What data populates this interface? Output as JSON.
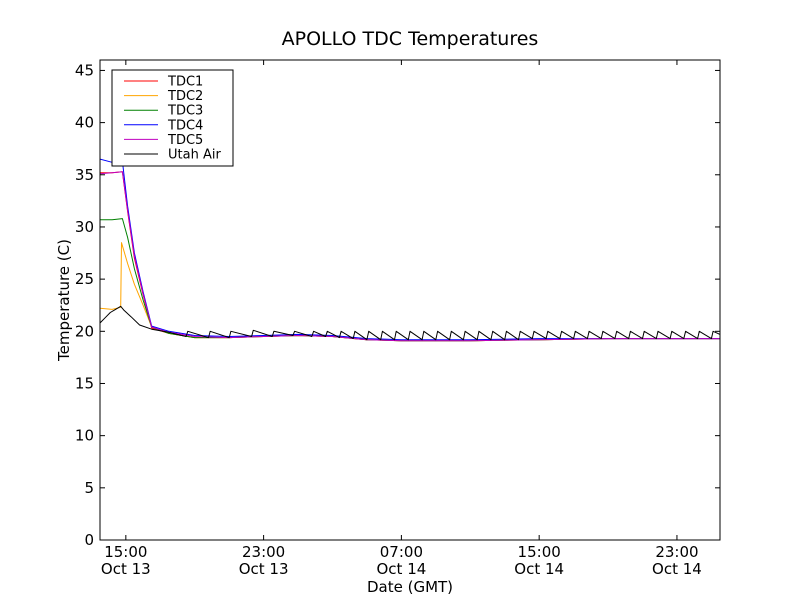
{
  "chart_data": {
    "type": "line",
    "title": "APOLLO TDC Temperatures",
    "xlabel": "Date (GMT)",
    "ylabel": "Temperature (C)",
    "xlim": [
      -1.5,
      34.5
    ],
    "ylim": [
      0,
      46
    ],
    "x_unit": "hours since 15:00 Oct 13",
    "yticks": [
      0,
      5,
      10,
      15,
      20,
      25,
      30,
      35,
      40,
      45
    ],
    "xticks": [
      {
        "x": 0,
        "line1": "15:00",
        "line2": "Oct 13"
      },
      {
        "x": 8,
        "line1": "23:00",
        "line2": "Oct 13"
      },
      {
        "x": 16,
        "line1": "07:00",
        "line2": "Oct 14"
      },
      {
        "x": 24,
        "line1": "15:00",
        "line2": "Oct 14"
      },
      {
        "x": 32,
        "line1": "23:00",
        "line2": "Oct 14"
      }
    ],
    "legend_position": "top-left",
    "series": [
      {
        "name": "TDC1",
        "color": "#ff0000",
        "x": [
          -1.5,
          -0.8,
          -0.2,
          0.1,
          0.5,
          1.0,
          1.5,
          2.5,
          4,
          6,
          8,
          10,
          12,
          14,
          16,
          18,
          20,
          24,
          28,
          32,
          34.5
        ],
        "y": [
          35.2,
          35.2,
          35.3,
          31.5,
          27.0,
          23.5,
          20.3,
          19.8,
          19.4,
          19.4,
          19.5,
          19.6,
          19.5,
          19.2,
          19.1,
          19.1,
          19.1,
          19.2,
          19.3,
          19.3,
          19.3
        ]
      },
      {
        "name": "TDC2",
        "color": "#ffa500",
        "x": [
          -1.5,
          -0.8,
          -0.3,
          -0.25,
          0.1,
          0.5,
          1.0,
          1.5,
          2.5,
          4,
          6,
          8,
          10,
          12,
          14,
          16,
          18,
          20,
          24,
          28,
          32,
          34.5
        ],
        "y": [
          22.2,
          22.1,
          22.3,
          28.5,
          26.5,
          24.5,
          22.5,
          20.4,
          19.8,
          19.4,
          19.4,
          19.5,
          19.6,
          19.5,
          19.2,
          19.1,
          19.1,
          19.1,
          19.2,
          19.3,
          19.3,
          19.3
        ]
      },
      {
        "name": "TDC3",
        "color": "#008000",
        "x": [
          -1.5,
          -0.8,
          -0.2,
          0.1,
          0.5,
          1.0,
          1.5,
          2.5,
          4,
          6,
          8,
          10,
          12,
          14,
          16,
          18,
          20,
          24,
          28,
          32,
          34.5
        ],
        "y": [
          30.7,
          30.7,
          30.8,
          29.0,
          26.0,
          23.0,
          20.4,
          19.8,
          19.4,
          19.4,
          19.5,
          19.6,
          19.5,
          19.2,
          19.1,
          19.1,
          19.1,
          19.2,
          19.3,
          19.3,
          19.3
        ]
      },
      {
        "name": "TDC4",
        "color": "#0000ff",
        "x": [
          -1.5,
          -0.8,
          -0.2,
          0.1,
          0.5,
          1.0,
          1.5,
          2.5,
          4,
          6,
          8,
          10,
          12,
          14,
          16,
          18,
          20,
          24,
          28,
          32,
          34.5
        ],
        "y": [
          36.5,
          36.2,
          36.3,
          32.0,
          27.5,
          23.8,
          20.5,
          20.0,
          19.6,
          19.5,
          19.6,
          19.7,
          19.6,
          19.3,
          19.2,
          19.2,
          19.2,
          19.3,
          19.3,
          19.3,
          19.3
        ]
      },
      {
        "name": "TDC5",
        "color": "#bf00bf",
        "x": [
          -1.5,
          -0.8,
          -0.2,
          0.1,
          0.5,
          1.0,
          1.5,
          2.5,
          4,
          6,
          8,
          10,
          12,
          14,
          16,
          18,
          20,
          24,
          28,
          32,
          34.5
        ],
        "y": [
          35.1,
          35.2,
          35.3,
          31.6,
          27.2,
          23.6,
          20.4,
          19.9,
          19.5,
          19.4,
          19.5,
          19.6,
          19.5,
          19.2,
          19.1,
          19.1,
          19.1,
          19.2,
          19.3,
          19.3,
          19.3
        ]
      },
      {
        "name": "Utah Air",
        "color": "#000000",
        "x": [
          -1.5,
          -1.2,
          -0.9,
          -0.6,
          -0.3,
          -0.1,
          0.3,
          0.8,
          1.5,
          2.5,
          3.5,
          3.6,
          4.8,
          4.9,
          6.0,
          6.1,
          7.3,
          7.4,
          8.5,
          8.6,
          9.7,
          9.8,
          10.8,
          10.9,
          11.6,
          11.7,
          12.4,
          12.5,
          13.2,
          13.3,
          14.0,
          14.1,
          14.8,
          14.9,
          15.6,
          15.7,
          16.4,
          16.5,
          17.2,
          17.3,
          18.0,
          18.1,
          18.8,
          18.9,
          19.6,
          19.7,
          20.4,
          20.5,
          21.2,
          21.3,
          22.0,
          22.1,
          22.8,
          22.9,
          23.6,
          23.7,
          24.4,
          24.5,
          25.2,
          25.3,
          26.0,
          26.1,
          26.8,
          26.9,
          27.6,
          27.7,
          28.4,
          28.5,
          29.2,
          29.3,
          30.0,
          30.1,
          30.8,
          30.9,
          31.6,
          31.7,
          32.4,
          32.5,
          33.2,
          33.3,
          34.0,
          34.1,
          34.5
        ],
        "y": [
          20.8,
          21.3,
          21.8,
          22.1,
          22.4,
          22.0,
          21.4,
          20.6,
          20.2,
          19.9,
          19.5,
          20.0,
          19.4,
          20.0,
          19.4,
          20.0,
          19.5,
          20.1,
          19.5,
          20.0,
          19.6,
          20.0,
          19.5,
          20.0,
          19.5,
          20.0,
          19.4,
          20.0,
          19.3,
          20.0,
          19.2,
          20.0,
          19.2,
          20.0,
          19.2,
          20.0,
          19.2,
          20.0,
          19.2,
          20.0,
          19.2,
          20.0,
          19.2,
          20.0,
          19.2,
          20.0,
          19.2,
          20.0,
          19.2,
          20.0,
          19.2,
          20.0,
          19.2,
          20.0,
          19.3,
          20.0,
          19.3,
          20.0,
          19.3,
          20.0,
          19.3,
          20.0,
          19.3,
          20.0,
          19.3,
          20.0,
          19.3,
          20.0,
          19.3,
          20.0,
          19.3,
          20.0,
          19.3,
          20.0,
          19.3,
          20.0,
          19.3,
          20.0,
          19.3,
          20.0,
          19.3,
          20.0,
          19.7
        ]
      }
    ]
  }
}
